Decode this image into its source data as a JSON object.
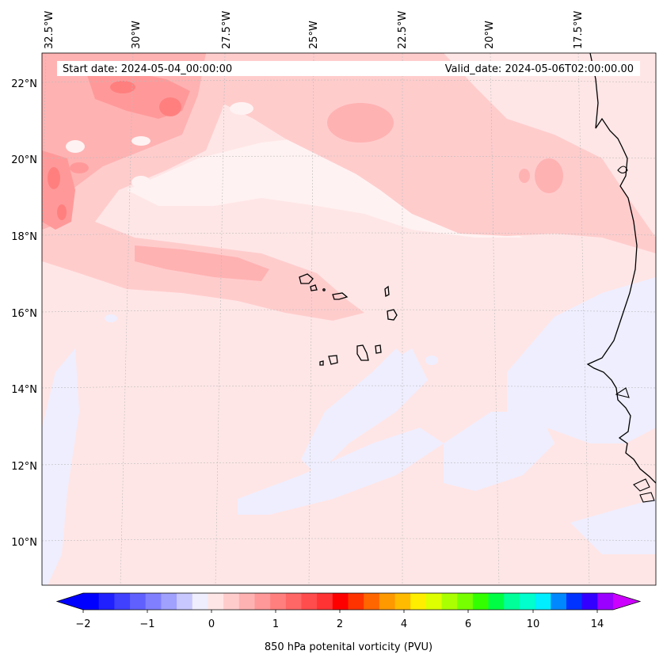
{
  "map": {
    "start_date_label": "Start date: 2024-05-04_00:00:00",
    "valid_date_label": "Valid_date: 2024-05-06T02:00:00.00",
    "lat_labels": [
      "22°N",
      "20°N",
      "18°N",
      "16°N",
      "14°N",
      "12°N",
      "10°N"
    ],
    "lon_labels": [
      "32.5°W",
      "30°W",
      "27.5°W",
      "25°W",
      "22.5°W",
      "20°W",
      "17.5°W"
    ],
    "field_colors": {
      "background_pale_pink": "#ffe6e6",
      "light_pink": "#ffcccc",
      "medium_pink": "#ffb2b2",
      "salmon": "#ff9999",
      "red_pink": "#ff7f7f",
      "pale_lavender": "#eeeeff",
      "white_band": "#fff2f2"
    },
    "coastline_color": "#000000"
  },
  "colorbar": {
    "label": "850 hPa potenital vorticity (PVU)",
    "tick_labels": [
      "−2",
      "−1",
      "0",
      "1",
      "2",
      "4",
      "6",
      "10",
      "14"
    ],
    "colors": [
      "#0000ff",
      "#2020ff",
      "#4040ff",
      "#6060ff",
      "#8080ff",
      "#a0a0ff",
      "#c8c8ff",
      "#eeeeff",
      "#ffe6e6",
      "#ffcccc",
      "#ffb2b2",
      "#ff9999",
      "#ff7f7f",
      "#ff6666",
      "#ff4c4c",
      "#ff3333",
      "#ff0000",
      "#ff3300",
      "#ff6600",
      "#ff9900",
      "#ffbb00",
      "#ffee00",
      "#ddff00",
      "#aaff00",
      "#77ff00",
      "#33ff00",
      "#00ff44",
      "#00ff99",
      "#00ffcc",
      "#00eeff",
      "#0088ff",
      "#0033ff",
      "#3300ff",
      "#9900ff"
    ],
    "extend_low_color": "#0000ff",
    "extend_high_color": "#cc00ff"
  }
}
